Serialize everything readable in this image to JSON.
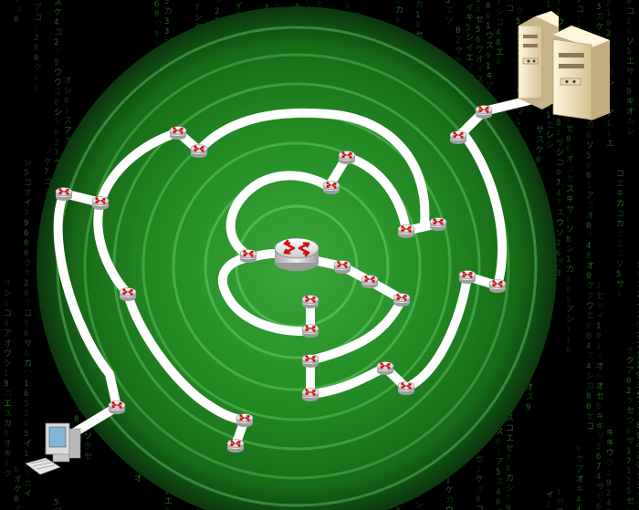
{
  "scene": {
    "description_type": "network-routing-diagram",
    "background": "matrix-code",
    "colors": {
      "background": "#000000",
      "matrix_text": "#3ea03a",
      "disk_outer": "#0d3d0f",
      "disk_mid": "#1f7a1f",
      "disk_inner": "#3aa63a",
      "ring_line": "#5cc25c",
      "path": "#ffffff",
      "router_body": "#f2f2f2",
      "router_arrows": "#cc1111",
      "server_body": "#f1e3c2",
      "computer_body": "#d9d9d9"
    },
    "icons": {
      "source": "desktop-computer-icon",
      "destination": "server-rack-icon",
      "hub": "core-router-icon",
      "node": "router-icon"
    }
  }
}
